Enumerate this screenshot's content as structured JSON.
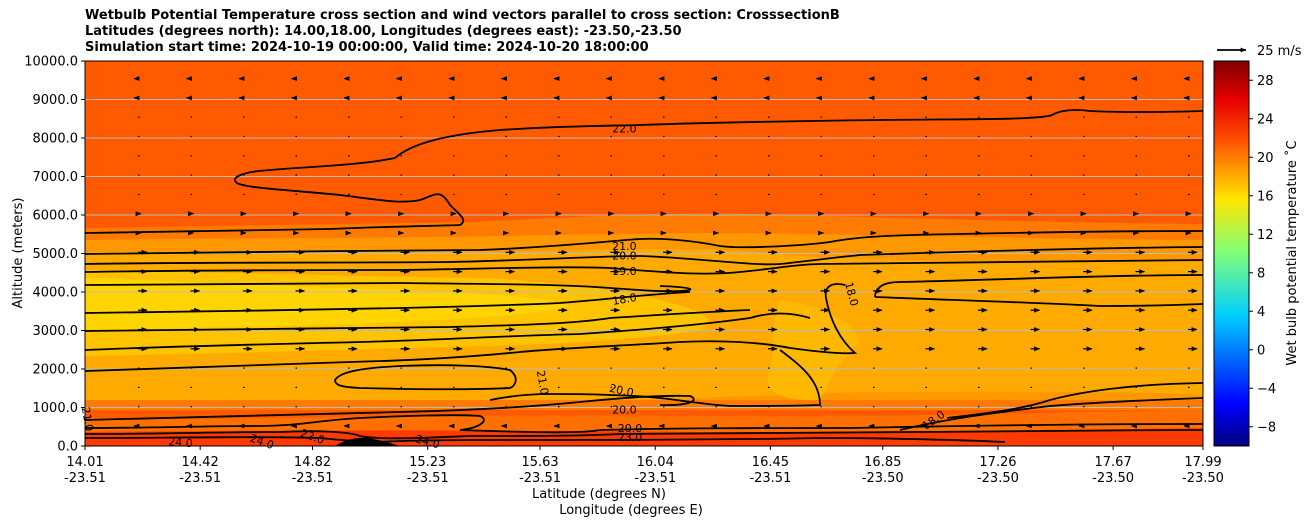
{
  "chart_data": {
    "type": "contour",
    "title_lines": [
      "Wetbulb Potential Temperature cross section and wind vectors parallel to cross section: CrosssectionB",
      "Latitudes (degrees north): 14.00,18.00, Longitudes (degrees east): -23.50,-23.50",
      "Simulation start time: 2024-10-19 00:00:00, Valid time: 2024-10-20 18:00:00"
    ],
    "ylabel": "Altitude (meters)",
    "xlabel_lat": "Latitude (degrees N)",
    "xlabel_lon": "Longitude (degrees E)",
    "ylim": [
      0,
      10000
    ],
    "yticks": [
      "0.0",
      "1000.0",
      "2000.0",
      "3000.0",
      "4000.0",
      "5000.0",
      "6000.0",
      "7000.0",
      "8000.0",
      "9000.0",
      "10000.0"
    ],
    "xticks_lat": [
      "14.01",
      "14.42",
      "14.82",
      "15.23",
      "15.63",
      "16.04",
      "16.45",
      "16.85",
      "17.26",
      "17.67",
      "17.99"
    ],
    "xticks_lon": [
      "-23.51",
      "-23.51",
      "-23.51",
      "-23.51",
      "-23.51",
      "-23.51",
      "-23.51",
      "-23.50",
      "-23.50",
      "-23.50",
      "-23.50"
    ],
    "grid": "horizontal",
    "colorbar": {
      "label": "Wet bulb potential temperature ˚C",
      "ticks": [
        "−8",
        "−4",
        "0",
        "4",
        "8",
        "12",
        "16",
        "20",
        "24",
        "28"
      ],
      "range": [
        -10,
        30
      ],
      "colormap": "jet"
    },
    "quiver_key": "25 m/s",
    "contour_labels": [
      {
        "text": "22.0",
        "lat": 15.93,
        "alt": 8250,
        "angle": 0
      },
      {
        "text": "21.0",
        "lat": 15.93,
        "alt": 5200,
        "angle": 0
      },
      {
        "text": "20.0",
        "lat": 15.93,
        "alt": 4950,
        "angle": 0
      },
      {
        "text": "19.0",
        "lat": 15.93,
        "alt": 4550,
        "angle": 0
      },
      {
        "text": "18.0",
        "lat": 15.93,
        "alt": 3820,
        "angle": -10
      },
      {
        "text": "18.0",
        "lat": 16.74,
        "alt": 3950,
        "angle": 75
      },
      {
        "text": "21.0",
        "lat": 15.64,
        "alt": 1650,
        "angle": 80
      },
      {
        "text": "20.0",
        "lat": 15.92,
        "alt": 1450,
        "angle": 12
      },
      {
        "text": "20.0",
        "lat": 15.93,
        "alt": 950,
        "angle": 0
      },
      {
        "text": "20.0",
        "lat": 15.95,
        "alt": 470,
        "angle": 0
      },
      {
        "text": "23.0",
        "lat": 15.95,
        "alt": 230,
        "angle": 0
      },
      {
        "text": "18.0",
        "lat": 17.03,
        "alt": 680,
        "angle": -35
      },
      {
        "text": "21.0",
        "lat": 14.02,
        "alt": 700,
        "angle": 80
      },
      {
        "text": "24.0",
        "lat": 14.35,
        "alt": 100,
        "angle": 5
      },
      {
        "text": "24.0",
        "lat": 14.64,
        "alt": 120,
        "angle": 20
      },
      {
        "text": "22.0",
        "lat": 14.82,
        "alt": 250,
        "angle": 20
      },
      {
        "text": "24.0",
        "lat": 15.23,
        "alt": 120,
        "angle": 15
      }
    ]
  }
}
